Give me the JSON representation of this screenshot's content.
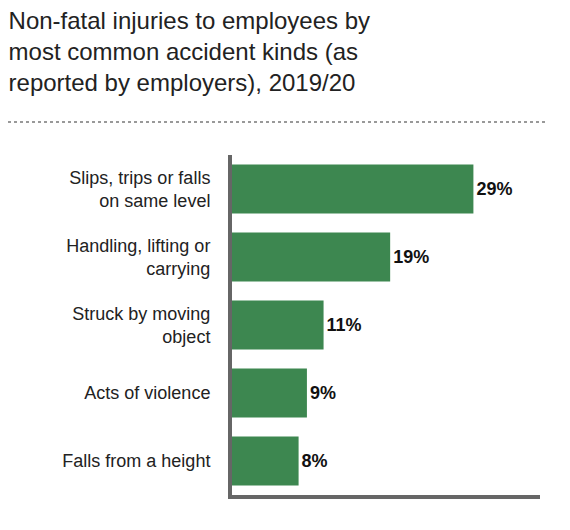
{
  "chart_data": {
    "type": "bar",
    "title": "Non-fatal injuries to employees by most common accident kinds (as reported by employers), 2019/20",
    "orientation": "horizontal",
    "categories": [
      "Slips, trips or falls on same level",
      "Handling, lifting or carrying",
      "Struck by moving object",
      "Acts of violence",
      "Falls from a height"
    ],
    "values": [
      29,
      19,
      11,
      9,
      8
    ],
    "value_labels": [
      "29%",
      "19%",
      "11%",
      "9%",
      "8%"
    ],
    "color": "#3d8750",
    "xlim": [
      0,
      37
    ],
    "grid": false,
    "data_labels": true,
    "tick_labels": "y"
  }
}
